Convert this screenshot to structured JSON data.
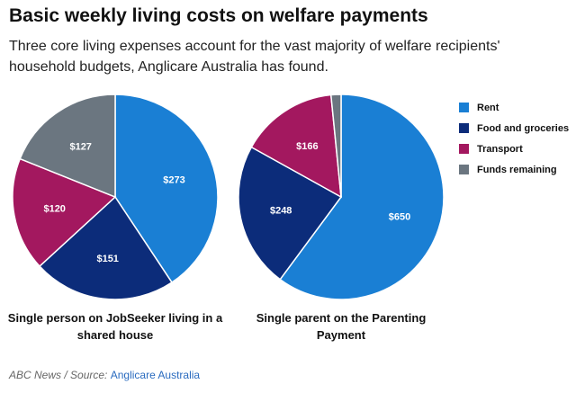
{
  "title": "Basic weekly living costs on welfare payments",
  "subtitle": "Three core living expenses account for the vast majority of welfare recipients' household budgets, Anglicare Australia has found.",
  "colors": {
    "rent": "#1a7fd4",
    "food": "#0c2c7a",
    "transport": "#a3185f",
    "funds": "#6b7680"
  },
  "legend": [
    {
      "label": "Rent",
      "color": "#1a7fd4"
    },
    {
      "label": "Food and groceries",
      "color": "#0c2c7a"
    },
    {
      "label": "Transport",
      "color": "#a3185f"
    },
    {
      "label": "Funds remaining",
      "color": "#6b7680"
    }
  ],
  "chart_data": [
    {
      "type": "pie",
      "caption": "Single person on JobSeeker living in a shared house",
      "labels": [
        "Rent",
        "Food and groceries",
        "Transport",
        "Funds remaining"
      ],
      "values": [
        273,
        151,
        120,
        127
      ],
      "value_labels": [
        "$273",
        "$151",
        "$120",
        "$127"
      ],
      "colors": [
        "#1a7fd4",
        "#0c2c7a",
        "#a3185f",
        "#6b7680"
      ],
      "start": "12 o'clock",
      "direction": "clockwise"
    },
    {
      "type": "pie",
      "caption": "Single parent on the Parenting Payment",
      "labels": [
        "Rent",
        "Food and groceries",
        "Transport",
        "Funds remaining"
      ],
      "values": [
        650,
        248,
        166,
        17
      ],
      "value_labels": [
        "$650",
        "$248",
        "$166",
        ""
      ],
      "colors": [
        "#1a7fd4",
        "#0c2c7a",
        "#a3185f",
        "#6b7680"
      ],
      "start": "12 o'clock",
      "direction": "clockwise"
    }
  ],
  "footer": {
    "prefix": "ABC News / Source: ",
    "source": "Anglicare Australia"
  }
}
